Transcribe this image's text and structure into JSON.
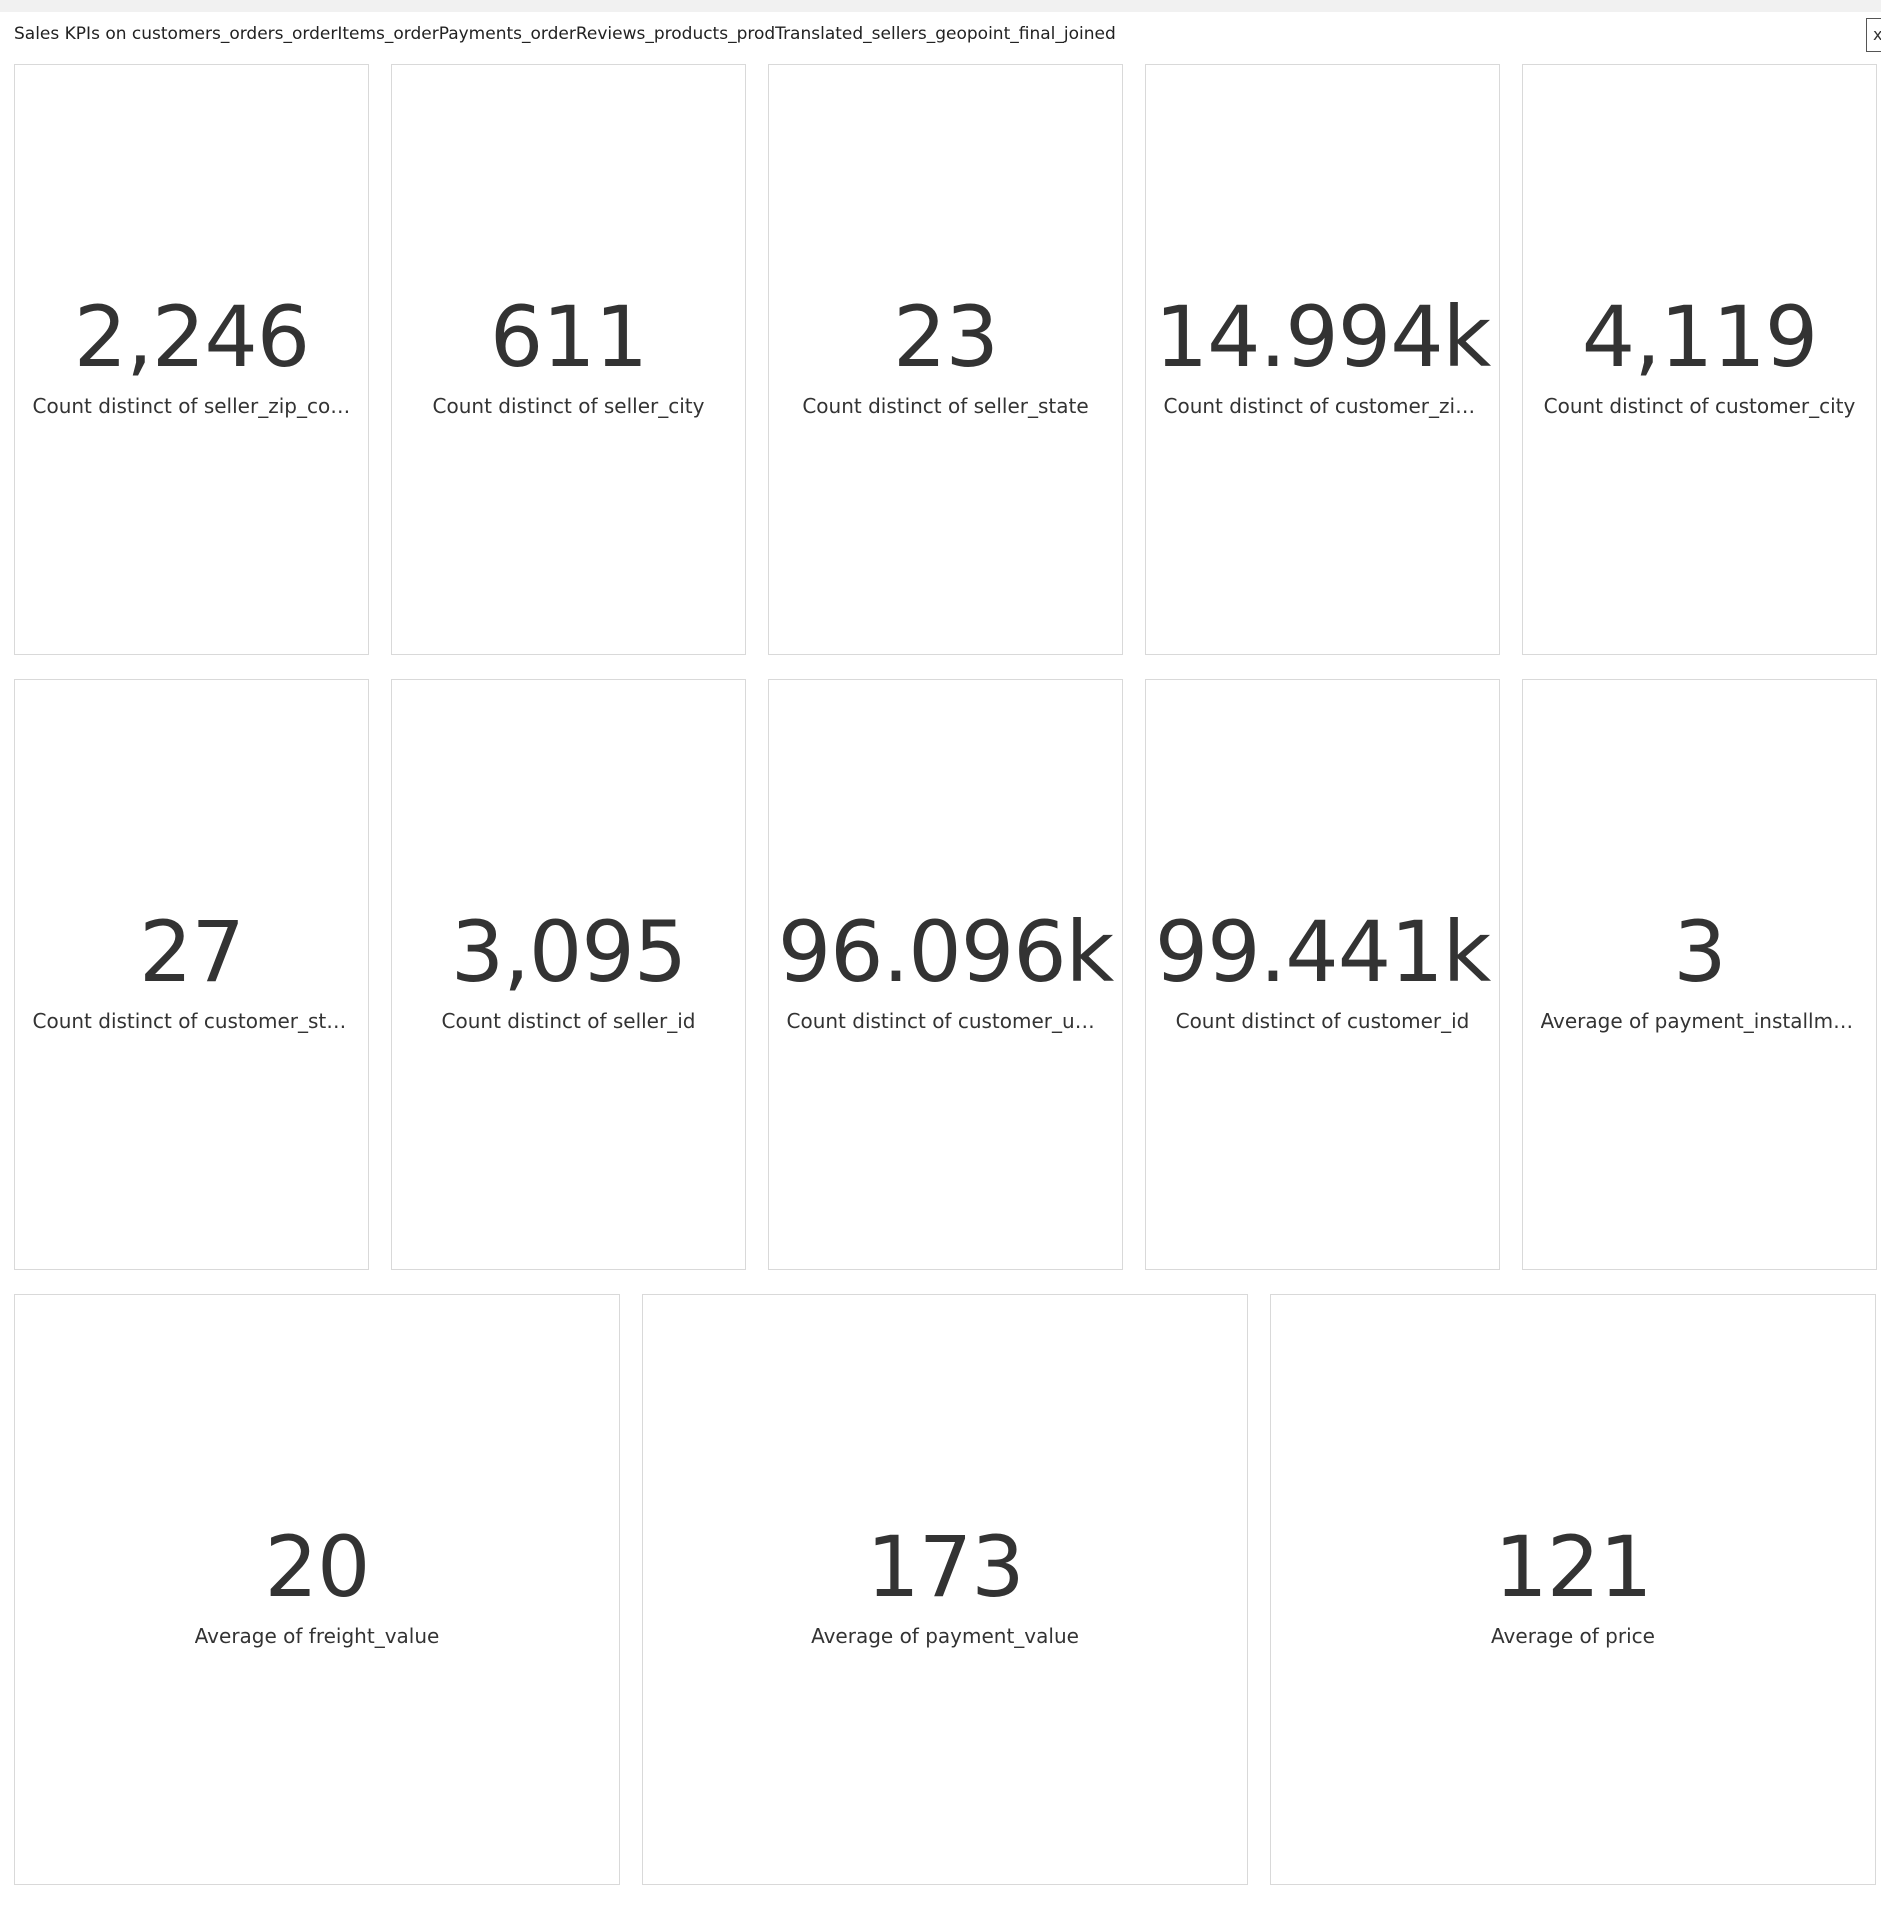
{
  "panel": {
    "title": "Sales KPIs on customers_orders_orderItems_orderPayments_orderReviews_products_prodTranslated_sellers_geopoint_final_joined",
    "close_label": "x"
  },
  "kpis": [
    {
      "value": "2,246",
      "label": "Count distinct of seller_zip_code..."
    },
    {
      "value": "611",
      "label": "Count distinct of seller_city"
    },
    {
      "value": "23",
      "label": "Count distinct of seller_state"
    },
    {
      "value": "14.994k",
      "label": "Count distinct of customer_zip_..."
    },
    {
      "value": "4,119",
      "label": "Count distinct of customer_city"
    },
    {
      "value": "27",
      "label": "Count distinct of customer_state"
    },
    {
      "value": "3,095",
      "label": "Count distinct of seller_id"
    },
    {
      "value": "96.096k",
      "label": "Count distinct of customer_uniq..."
    },
    {
      "value": "99.441k",
      "label": "Count distinct of customer_id"
    },
    {
      "value": "3",
      "label": "Average of payment_installments"
    },
    {
      "value": "20",
      "label": "Average of freight_value"
    },
    {
      "value": "173",
      "label": "Average of payment_value"
    },
    {
      "value": "121",
      "label": "Average of price"
    }
  ]
}
